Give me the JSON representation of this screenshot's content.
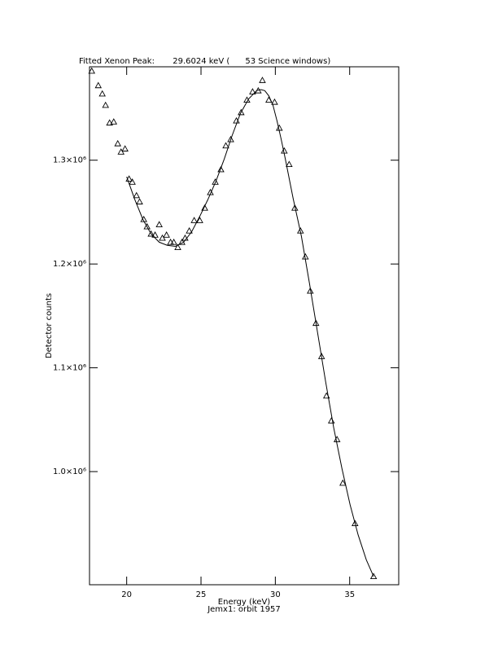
{
  "chart_data": {
    "type": "scatter",
    "title": "Fitted Xenon Peak:       29.6024 keV (      53 Science windows)",
    "x_label": "Energy (keV)",
    "subtitle": "Jemx1: orbit 1957",
    "y_label": "Detector counts",
    "xlim": [
      17.5,
      38.3
    ],
    "ylim": [
      891000,
      1390000
    ],
    "xticks": [
      20,
      25,
      30,
      35
    ],
    "yticks": [
      {
        "value": 1000000,
        "label": "1.0×10⁶"
      },
      {
        "value": 1100000,
        "label": "1.1×10⁶"
      },
      {
        "value": 1200000,
        "label": "1.2×10⁶"
      },
      {
        "value": 1300000,
        "label": "1.3×10⁶"
      }
    ],
    "series": [
      {
        "type": "scatter",
        "marker": "triangle",
        "color": "#000000",
        "x": [
          17.65,
          18.09,
          18.36,
          18.58,
          18.85,
          19.13,
          19.4,
          19.62,
          19.89,
          20.16,
          20.38,
          20.66,
          20.87,
          21.15,
          21.37,
          21.64,
          21.91,
          22.19,
          22.4,
          22.68,
          22.95,
          23.17,
          23.44,
          23.72,
          23.93,
          24.21,
          24.54,
          24.92,
          25.25,
          25.63,
          25.96,
          26.34,
          26.67,
          27.0,
          27.38,
          27.7,
          28.09,
          28.47,
          28.85,
          29.13,
          29.56,
          29.95,
          30.27,
          30.6,
          30.93,
          31.31,
          31.69,
          32.02,
          32.35,
          32.73,
          33.11,
          33.44,
          33.77,
          34.15,
          34.54,
          35.36,
          36.61
        ],
        "values": [
          1386000,
          1372000,
          1364000,
          1353000,
          1336000,
          1337000,
          1316000,
          1308000,
          1311000,
          1282000,
          1279000,
          1266000,
          1260000,
          1243000,
          1236000,
          1229000,
          1228000,
          1238000,
          1225000,
          1228000,
          1221000,
          1221000,
          1216000,
          1221000,
          1225000,
          1232000,
          1242000,
          1242000,
          1254000,
          1269000,
          1279000,
          1291000,
          1314000,
          1320000,
          1338000,
          1346000,
          1358000,
          1366000,
          1367000,
          1377000,
          1358000,
          1356000,
          1331000,
          1309000,
          1296000,
          1254000,
          1232000,
          1207000,
          1174000,
          1143000,
          1111000,
          1073000,
          1049000,
          1031000,
          989000,
          950000,
          899000
        ]
      },
      {
        "type": "line",
        "color": "#000000",
        "x": [
          20.0,
          20.55,
          21.09,
          21.64,
          22.19,
          22.73,
          23.28,
          23.83,
          24.37,
          24.92,
          25.46,
          26.01,
          26.56,
          27.1,
          27.65,
          28.2,
          28.74,
          29.02,
          29.29,
          29.56,
          29.84,
          30.11,
          30.38,
          30.66,
          31.2,
          31.75,
          32.3,
          32.84,
          33.39,
          33.93,
          34.48,
          35.03,
          35.57,
          36.12,
          36.61
        ],
        "values": [
          1284000,
          1262000,
          1243000,
          1229000,
          1221000,
          1218000,
          1217000,
          1221000,
          1231000,
          1246000,
          1262000,
          1280000,
          1301000,
          1324000,
          1345000,
          1359000,
          1367000,
          1368000,
          1367000,
          1362000,
          1353000,
          1338000,
          1321000,
          1302000,
          1263000,
          1227000,
          1181000,
          1134000,
          1086000,
          1042000,
          1003000,
          968000,
          939000,
          915000,
          899000
        ]
      }
    ]
  }
}
